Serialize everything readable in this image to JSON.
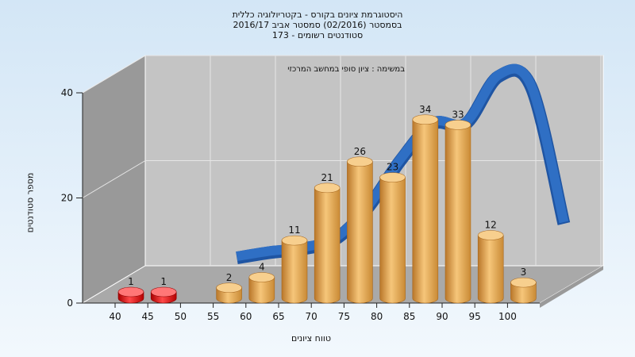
{
  "title": {
    "line1": "היסטוגרמת ציונים בקורס - בקטריולוגיה כללית",
    "line2": "בסמסטר  (02/2016)  סמסטר אביב 2016/17",
    "line3": "סטודנטים רשומים - 173"
  },
  "annotation": "במשימה : ציון סופי במחשב המרכזי",
  "colors": {
    "low_bar": "#dd1111",
    "bar": "#e9a94a",
    "curve": "#2f6fc4",
    "wall": "#c4c4c4",
    "side_wall": "#999999",
    "floor": "#a9a9a9"
  },
  "chart_data": {
    "type": "bar",
    "title": "היסטוגרמת ציונים בקורס - בקטריולוגיה כללית",
    "xlabel": "טווח ציונים",
    "ylabel": "מספר סטודנטים",
    "ylim": [
      0,
      40
    ],
    "yticks": [
      0,
      20,
      40
    ],
    "categories": [
      "40",
      "45",
      "50",
      "55",
      "60",
      "65",
      "70",
      "75",
      "80",
      "85",
      "90",
      "95",
      "100"
    ],
    "values": [
      1,
      1,
      0,
      2,
      4,
      11,
      21,
      26,
      23,
      34,
      33,
      12,
      3
    ],
    "failing_categories": [
      "40",
      "45"
    ],
    "curve": {
      "type": "smoothed-distribution",
      "x": [
        50,
        55,
        60,
        65,
        70,
        75,
        80,
        85,
        90,
        95,
        100
      ],
      "y": [
        1.5,
        2.5,
        3.2,
        5,
        11,
        20,
        27,
        27,
        36,
        34,
        8
      ]
    },
    "grid": true,
    "legend": "none"
  }
}
